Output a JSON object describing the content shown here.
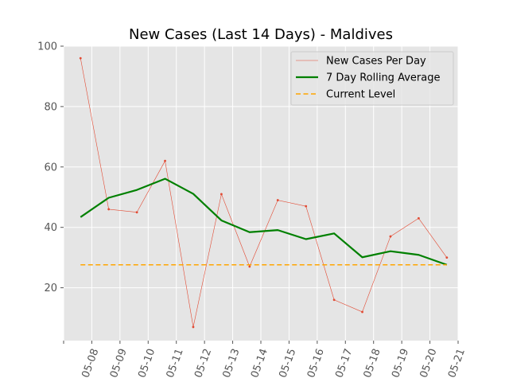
{
  "chart_data": {
    "type": "line",
    "title": "New Cases (Last 14 Days) - Maldives",
    "xlabel": "",
    "ylabel": "",
    "x_ticks": [
      "05-08",
      "05-09",
      "05-10",
      "05-11",
      "05-12",
      "05-13",
      "05-14",
      "05-15",
      "05-16",
      "05-17",
      "05-18",
      "05-19",
      "05-20",
      "05-21"
    ],
    "x_range": [
      0,
      14
    ],
    "ylim": [
      2.5,
      100
    ],
    "y_ticks": [
      20,
      40,
      60,
      80,
      100
    ],
    "grid": true,
    "legend_position": "top-right",
    "series": [
      {
        "name": "New Cases Per Day",
        "style": "thin-line-with-markers",
        "color": "#E24A33",
        "x": [
          0.6,
          1.6,
          2.6,
          3.6,
          4.6,
          5.6,
          6.6,
          7.6,
          8.6,
          9.6,
          10.6,
          11.6,
          12.6,
          13.6
        ],
        "values": [
          96,
          46,
          45,
          62,
          7,
          51,
          27,
          49,
          47,
          16,
          12,
          37,
          43,
          30
        ]
      },
      {
        "name": "7 Day Rolling Average",
        "style": "thick-line",
        "color": "#008000",
        "x": [
          0.6,
          1.6,
          2.6,
          3.6,
          4.6,
          5.6,
          6.6,
          7.6,
          8.6,
          9.6,
          10.6,
          11.6,
          12.6,
          13.6
        ],
        "values": [
          43.4,
          49.8,
          52.4,
          56.1,
          51.1,
          42.3,
          38.4,
          39.1,
          36.1,
          38.0,
          30.1,
          32.1,
          30.9,
          27.6
        ]
      },
      {
        "name": "Current Level",
        "style": "dashed",
        "color": "#FFA500",
        "x": [
          0.6,
          13.6
        ],
        "values": [
          27.6,
          27.6
        ]
      }
    ]
  }
}
